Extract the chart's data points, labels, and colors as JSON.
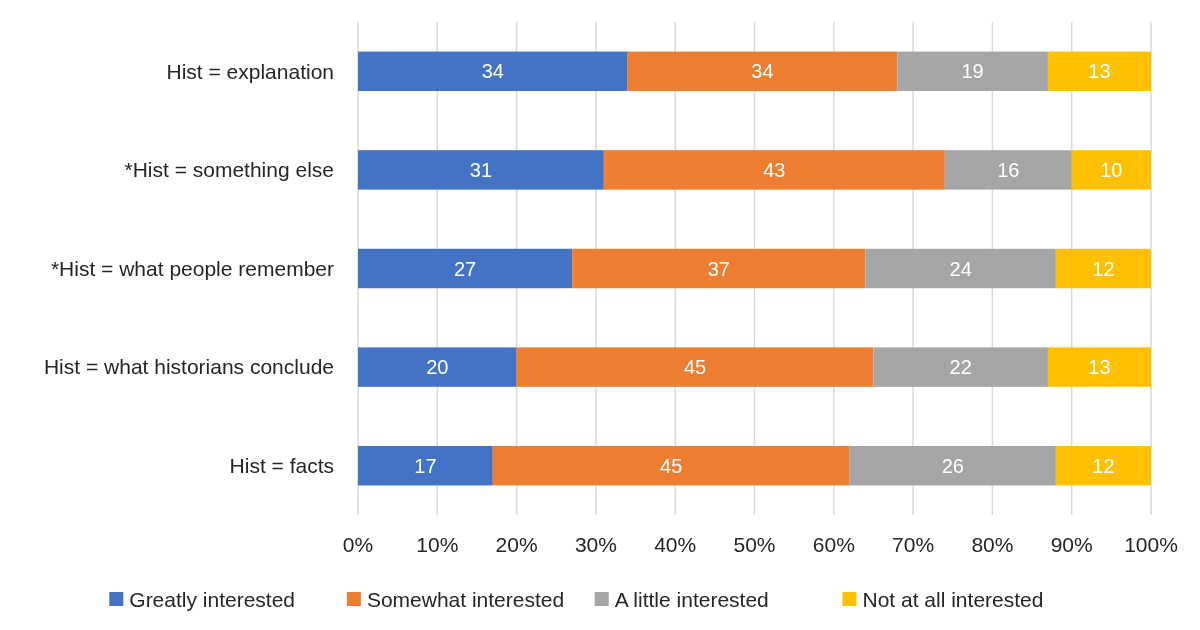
{
  "chart_data": {
    "type": "bar",
    "orientation": "horizontal",
    "stacked": true,
    "categories": [
      "Hist = explanation",
      "*Hist = something else",
      "*Hist = what people remember",
      "Hist = what historians conclude",
      "Hist = facts"
    ],
    "series": [
      {
        "name": "Greatly interested",
        "color": "#4472c4",
        "values": [
          34,
          31,
          27,
          20,
          17
        ]
      },
      {
        "name": "Somewhat interested",
        "color": "#ed7d31",
        "values": [
          34,
          43,
          37,
          45,
          45
        ]
      },
      {
        "name": "A little interested",
        "color": "#a5a5a5",
        "values": [
          19,
          16,
          24,
          22,
          26
        ]
      },
      {
        "name": "Not at all interested",
        "color": "#ffc000",
        "values": [
          13,
          10,
          12,
          13,
          12
        ]
      }
    ],
    "xlim": [
      0,
      100
    ],
    "xticks": [
      {
        "value": 0,
        "label": "0%"
      },
      {
        "value": 10,
        "label": "10%"
      },
      {
        "value": 20,
        "label": "20%"
      },
      {
        "value": 30,
        "label": "30%"
      },
      {
        "value": 40,
        "label": "40%"
      },
      {
        "value": 50,
        "label": "50%"
      },
      {
        "value": 60,
        "label": "60%"
      },
      {
        "value": 70,
        "label": "70%"
      },
      {
        "value": 80,
        "label": "80%"
      },
      {
        "value": 90,
        "label": "90%"
      },
      {
        "value": 100,
        "label": "100%"
      }
    ],
    "grid": "x",
    "data_labels": true,
    "legend": "bottom"
  }
}
